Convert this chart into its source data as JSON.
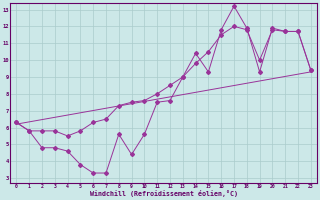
{
  "xlabel": "Windchill (Refroidissement éolien,°C)",
  "bg_color": "#cce8e8",
  "grid_color": "#aacccc",
  "line_color": "#993399",
  "xlim": [
    -0.5,
    23.5
  ],
  "ylim": [
    2.7,
    13.4
  ],
  "xticks": [
    0,
    1,
    2,
    3,
    4,
    5,
    6,
    7,
    8,
    9,
    10,
    11,
    12,
    13,
    14,
    15,
    16,
    17,
    18,
    19,
    20,
    21,
    22,
    23
  ],
  "yticks": [
    3,
    4,
    5,
    6,
    7,
    8,
    9,
    10,
    11,
    12,
    13
  ],
  "line1_x": [
    0,
    1,
    2,
    3,
    4,
    5,
    6,
    7,
    8,
    9,
    10,
    11,
    12,
    13,
    14,
    15,
    16,
    17,
    18,
    19,
    20,
    21,
    22,
    23
  ],
  "line1_y": [
    6.3,
    5.8,
    4.8,
    4.8,
    4.6,
    3.8,
    3.3,
    3.3,
    5.6,
    4.4,
    5.6,
    7.5,
    7.6,
    9.0,
    10.4,
    9.3,
    11.8,
    13.2,
    11.9,
    9.3,
    11.9,
    11.7,
    11.7,
    9.4
  ],
  "line2_x": [
    0,
    1,
    2,
    3,
    4,
    5,
    6,
    7,
    8,
    9,
    10,
    11,
    12,
    13,
    14,
    15,
    16,
    17,
    18,
    19,
    20,
    21,
    22,
    23
  ],
  "line2_y": [
    6.3,
    5.8,
    5.8,
    5.8,
    5.5,
    5.8,
    6.3,
    6.5,
    7.3,
    7.5,
    7.6,
    8.0,
    8.5,
    9.0,
    9.8,
    10.5,
    11.5,
    12.0,
    11.8,
    10.0,
    11.8,
    11.7,
    11.7,
    9.4
  ],
  "line3_x": [
    0,
    23
  ],
  "line3_y": [
    6.2,
    9.3
  ]
}
